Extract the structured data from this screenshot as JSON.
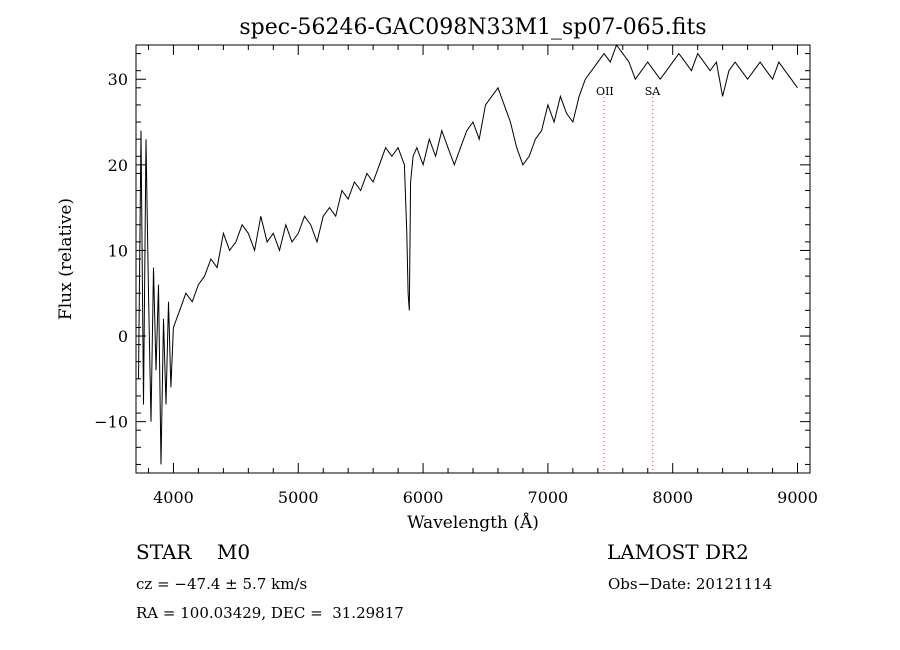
{
  "chart_data": {
    "type": "line",
    "title": "spec-56246-GAC098N33M1_sp07-065.fits",
    "xlabel": "Wavelength (Å)",
    "ylabel": "Flux (relative)",
    "xlim": [
      3700,
      9100
    ],
    "ylim": [
      -16,
      34
    ],
    "x_ticks": [
      4000,
      5000,
      6000,
      7000,
      8000,
      9000
    ],
    "x_tick_labels": [
      "4000",
      "5000",
      "6000",
      "7000",
      "8000",
      "9000"
    ],
    "y_ticks": [
      -10,
      0,
      10,
      20,
      30
    ],
    "y_tick_labels": [
      "−10",
      "0",
      "10",
      "20",
      "30"
    ],
    "grid": false,
    "line_color": "#000000",
    "marker_color": "#d04040",
    "series": [
      {
        "x": [
          3720,
          3740,
          3760,
          3780,
          3800,
          3820,
          3840,
          3860,
          3880,
          3900,
          3920,
          3940,
          3960,
          3980,
          4000,
          4050,
          4100,
          4150,
          4200,
          4250,
          4300,
          4350,
          4400,
          4450,
          4500,
          4550,
          4600,
          4650,
          4700,
          4750,
          4800,
          4850,
          4900,
          4950,
          5000,
          5050,
          5100,
          5150,
          5200,
          5250,
          5300,
          5350,
          5400,
          5450,
          5500,
          5550,
          5600,
          5650,
          5700,
          5750,
          5800,
          5850,
          5870,
          5880,
          5890,
          5900,
          5920,
          5950,
          6000,
          6050,
          6100,
          6150,
          6200,
          6250,
          6300,
          6350,
          6400,
          6450,
          6500,
          6550,
          6600,
          6650,
          6700,
          6750,
          6800,
          6850,
          6900,
          6950,
          7000,
          7050,
          7100,
          7150,
          7200,
          7250,
          7300,
          7350,
          7400,
          7450,
          7500,
          7550,
          7600,
          7650,
          7700,
          7750,
          7800,
          7850,
          7900,
          7950,
          8000,
          8050,
          8100,
          8150,
          8200,
          8250,
          8300,
          8350,
          8400,
          8450,
          8500,
          8550,
          8600,
          8650,
          8700,
          8750,
          8800,
          8850,
          8900,
          8950,
          9000
        ],
        "y": [
          -5,
          24,
          -8,
          23,
          5,
          -10,
          8,
          -4,
          6,
          -15,
          2,
          -8,
          4,
          -6,
          1,
          3,
          5,
          4,
          6,
          7,
          9,
          8,
          12,
          10,
          11,
          13,
          12,
          10,
          14,
          11,
          12,
          10,
          13,
          11,
          12,
          14,
          13,
          11,
          14,
          15,
          14,
          17,
          16,
          18,
          17,
          19,
          18,
          20,
          22,
          21,
          22,
          20,
          12,
          5,
          3,
          18,
          21,
          22,
          20,
          23,
          21,
          24,
          22,
          20,
          22,
          24,
          25,
          23,
          27,
          28,
          29,
          27,
          25,
          22,
          20,
          21,
          23,
          24,
          27,
          25,
          28,
          26,
          25,
          28,
          30,
          31,
          32,
          33,
          32,
          34,
          33,
          32,
          30,
          31,
          32,
          31,
          30,
          31,
          32,
          33,
          32,
          31,
          33,
          32,
          31,
          32,
          28,
          31,
          32,
          31,
          30,
          31,
          32,
          31,
          30,
          32,
          31,
          30,
          29
        ]
      }
    ],
    "markers": [
      {
        "x": 7450,
        "label": "OII"
      },
      {
        "x": 7840,
        "label": "SA"
      }
    ]
  },
  "info": {
    "star_type": "STAR    M0",
    "survey": "LAMOST DR2",
    "cz": "cz = −47.4 ± 5.7 km/s",
    "obs_date": "Obs−Date: 20121114",
    "radec": "RA = 100.03429, DEC =  31.29817"
  }
}
